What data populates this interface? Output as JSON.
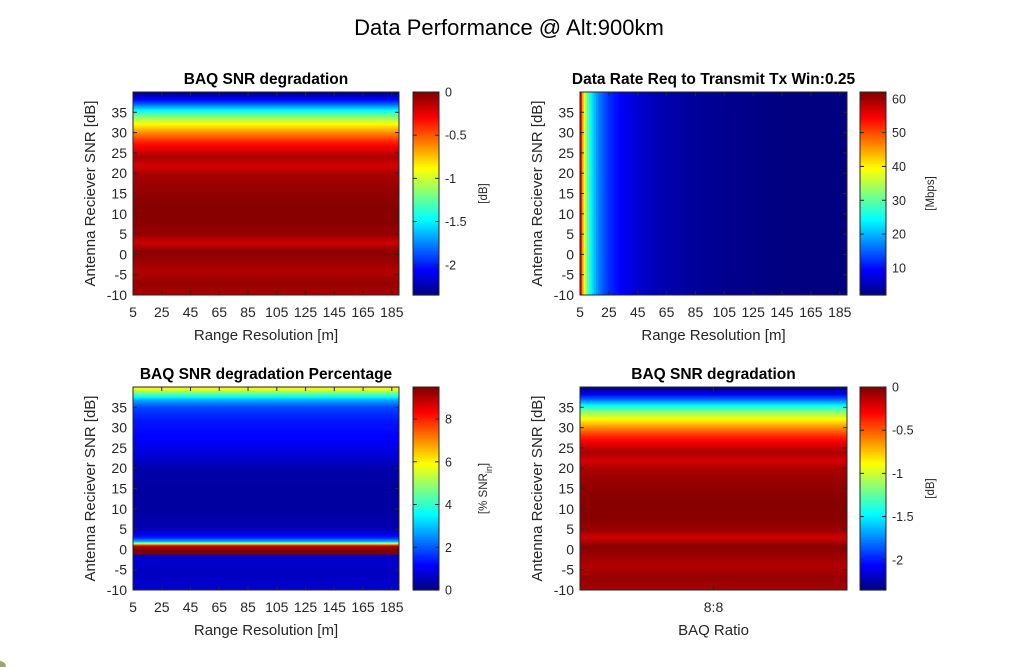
{
  "figure": {
    "title": "Data Performance @ Alt:900km"
  },
  "colormap": "jet",
  "chart_data": [
    {
      "type": "heatmap",
      "title": "BAQ SNR degradation",
      "xlabel": "Range Resolution [m]",
      "ylabel": "Antenna Reciever SNR [dB]",
      "x_ticks": [
        "5",
        "25",
        "45",
        "65",
        "85",
        "105",
        "125",
        "145",
        "165",
        "185"
      ],
      "x_range": [
        5,
        190
      ],
      "y_ticks": [
        "-10",
        "-5",
        "0",
        "5",
        "10",
        "15",
        "20",
        "25",
        "30",
        "35"
      ],
      "y_range": [
        -10,
        40
      ],
      "colorbar": {
        "label": "[dB]",
        "ticks": [
          "0",
          "-0.5",
          "-1",
          "-1.5",
          "-2"
        ],
        "clim": [
          -2.35,
          0
        ]
      },
      "z_profile_along_y": {
        "y": [
          -10,
          -7,
          -4,
          -1,
          1,
          3,
          5,
          8,
          12,
          16,
          18,
          20,
          22,
          24,
          26,
          28,
          30,
          32,
          34,
          35.5,
          37,
          38.5,
          40
        ],
        "z": [
          -0.1,
          -0.05,
          -0.12,
          -0.05,
          -0.03,
          -0.18,
          -0.06,
          -0.02,
          -0.02,
          -0.05,
          -0.07,
          -0.1,
          -0.2,
          -0.1,
          -0.22,
          -0.38,
          -0.6,
          -0.85,
          -1.15,
          -1.45,
          -1.8,
          -2.1,
          -2.35
        ]
      }
    },
    {
      "type": "heatmap",
      "title": "Data Rate Req to Transmit Tx Win:0.25",
      "xlabel": "Range Resolution [m]",
      "ylabel": "Antenna Reciever SNR [dB]",
      "x_ticks": [
        "5",
        "25",
        "45",
        "65",
        "85",
        "105",
        "125",
        "145",
        "165",
        "185"
      ],
      "x_range": [
        5,
        190
      ],
      "y_ticks": [
        "-10",
        "-5",
        "0",
        "5",
        "10",
        "15",
        "20",
        "25",
        "30",
        "35"
      ],
      "y_range": [
        -10,
        40
      ],
      "colorbar": {
        "label": "[Mbps]",
        "ticks": [
          "10",
          "20",
          "30",
          "40",
          "50",
          "60"
        ],
        "clim": [
          2,
          62
        ]
      },
      "z_model": "62 * 5 / range_resolution (constant along SNR)"
    },
    {
      "type": "heatmap",
      "title": "BAQ SNR degradation Percentage",
      "xlabel": "Range Resolution [m]",
      "ylabel": "Antenna Reciever SNR [dB]",
      "x_ticks": [
        "5",
        "25",
        "45",
        "65",
        "85",
        "105",
        "125",
        "145",
        "165",
        "185"
      ],
      "x_range": [
        5,
        190
      ],
      "y_ticks": [
        "-10",
        "-5",
        "0",
        "5",
        "10",
        "15",
        "20",
        "25",
        "30",
        "35"
      ],
      "y_range": [
        -10,
        40
      ],
      "colorbar": {
        "label": "[% SNR",
        "label_sub": "in",
        "label_end": "]",
        "ticks": [
          "0",
          "2",
          "4",
          "6",
          "8"
        ],
        "clim": [
          0,
          9.5
        ]
      },
      "z_profile_along_y": {
        "y": [
          -10,
          -6,
          -3,
          -1.5,
          -1.2,
          -1,
          0,
          1,
          1.5,
          2,
          3,
          5,
          10,
          15,
          20,
          24,
          28,
          32,
          35,
          37,
          38.5,
          40
        ],
        "z": [
          0.8,
          0.6,
          0.7,
          0.6,
          0.6,
          9.5,
          9.5,
          9.0,
          6.0,
          3.0,
          1.5,
          0.5,
          0.3,
          0.3,
          0.4,
          0.9,
          1.2,
          1.4,
          1.8,
          2.8,
          4.5,
          6.2
        ]
      }
    },
    {
      "type": "heatmap",
      "title": "BAQ SNR degradation",
      "xlabel": "BAQ Ratio",
      "ylabel": "Antenna Reciever SNR [dB]",
      "x_ticks": [
        "8:8"
      ],
      "y_ticks": [
        "-10",
        "-5",
        "0",
        "5",
        "10",
        "15",
        "20",
        "25",
        "30",
        "35"
      ],
      "y_range": [
        -10,
        40
      ],
      "colorbar": {
        "label": "[dB]",
        "ticks": [
          "0",
          "-0.5",
          "-1",
          "-1.5",
          "-2"
        ],
        "clim": [
          -2.35,
          0
        ]
      },
      "z_profile_along_y": {
        "y": [
          -10,
          -7,
          -4,
          -1,
          1,
          3,
          5,
          8,
          12,
          16,
          18,
          20,
          22,
          24,
          26,
          28,
          30,
          32,
          34,
          35.5,
          37,
          38.5,
          40
        ],
        "z": [
          -0.1,
          -0.05,
          -0.12,
          -0.05,
          -0.03,
          -0.18,
          -0.06,
          -0.02,
          -0.02,
          -0.05,
          -0.07,
          -0.1,
          -0.2,
          -0.1,
          -0.22,
          -0.38,
          -0.6,
          -0.85,
          -1.15,
          -1.45,
          -1.8,
          -2.1,
          -2.35
        ]
      }
    }
  ]
}
